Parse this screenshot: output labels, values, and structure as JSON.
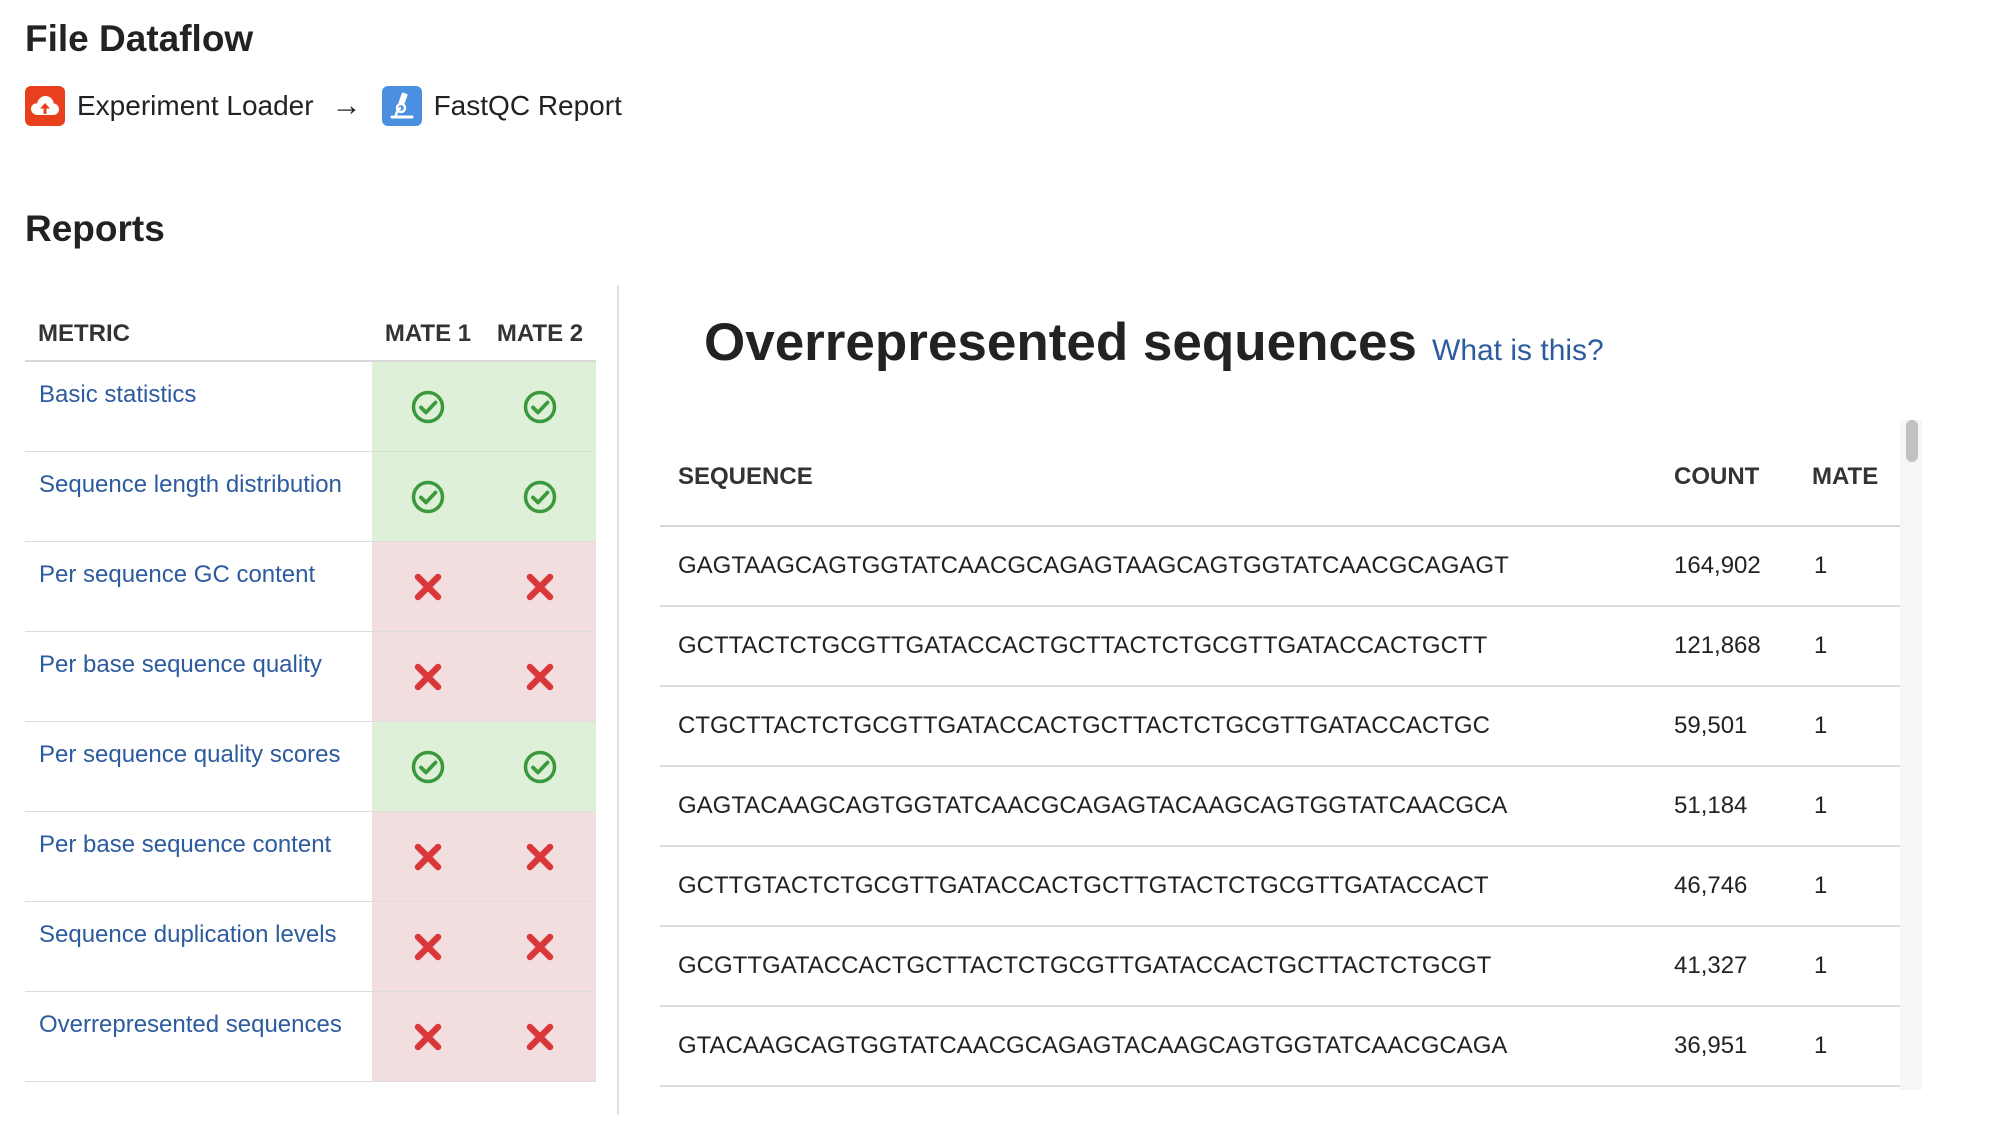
{
  "dataflow": {
    "title": "File Dataflow",
    "source_label": "Experiment Loader",
    "source_icon": "cloud-upload-icon",
    "source_color": "#e8401c",
    "arrow": "→",
    "target_label": "FastQC Report",
    "target_icon": "microscope-icon",
    "target_color": "#4a8fe0"
  },
  "reports": {
    "title": "Reports",
    "columns": {
      "metric": "METRIC",
      "mate1": "MATE 1",
      "mate2": "MATE 2"
    },
    "status_colors": {
      "pass_bg": "#dff0d8",
      "fail_bg": "#f2dede",
      "pass_icon": "#3c9a3c",
      "fail_icon": "#d9373a"
    },
    "metrics": [
      {
        "name": "Basic statistics",
        "mate1": "pass",
        "mate2": "pass"
      },
      {
        "name": "Sequence length distribution",
        "mate1": "pass",
        "mate2": "pass"
      },
      {
        "name": "Per sequence GC content",
        "mate1": "fail",
        "mate2": "fail"
      },
      {
        "name": "Per base sequence quality",
        "mate1": "fail",
        "mate2": "fail"
      },
      {
        "name": "Per sequence quality scores",
        "mate1": "pass",
        "mate2": "pass"
      },
      {
        "name": "Per base sequence content",
        "mate1": "fail",
        "mate2": "fail"
      },
      {
        "name": "Sequence duplication levels",
        "mate1": "fail",
        "mate2": "fail"
      },
      {
        "name": "Overrepresented sequences",
        "mate1": "fail",
        "mate2": "fail"
      }
    ]
  },
  "overrepresented": {
    "title": "Overrepresented sequences",
    "help_link": "What is this?",
    "columns": {
      "sequence": "SEQUENCE",
      "count": "COUNT",
      "mate": "MATE"
    },
    "rows": [
      {
        "sequence": "GAGTAAGCAGTGGTATCAACGCAGAGTAAGCAGTGGTATCAACGCAGAGT",
        "count": "164,902",
        "mate": "1"
      },
      {
        "sequence": "GCTTACTCTGCGTTGATACCACTGCTTACTCTGCGTTGATACCACTGCTT",
        "count": "121,868",
        "mate": "1"
      },
      {
        "sequence": "CTGCTTACTCTGCGTTGATACCACTGCTTACTCTGCGTTGATACCACTGC",
        "count": "59,501",
        "mate": "1"
      },
      {
        "sequence": "GAGTACAAGCAGTGGTATCAACGCAGAGTACAAGCAGTGGTATCAACGCA",
        "count": "51,184",
        "mate": "1"
      },
      {
        "sequence": "GCTTGTACTCTGCGTTGATACCACTGCTTGTACTCTGCGTTGATACCACT",
        "count": "46,746",
        "mate": "1"
      },
      {
        "sequence": "GCGTTGATACCACTGCTTACTCTGCGTTGATACCACTGCTTACTCTGCGT",
        "count": "41,327",
        "mate": "1"
      },
      {
        "sequence": "GTACAAGCAGTGGTATCAACGCAGAGTACAAGCAGTGGTATCAACGCAGA",
        "count": "36,951",
        "mate": "1"
      }
    ]
  }
}
